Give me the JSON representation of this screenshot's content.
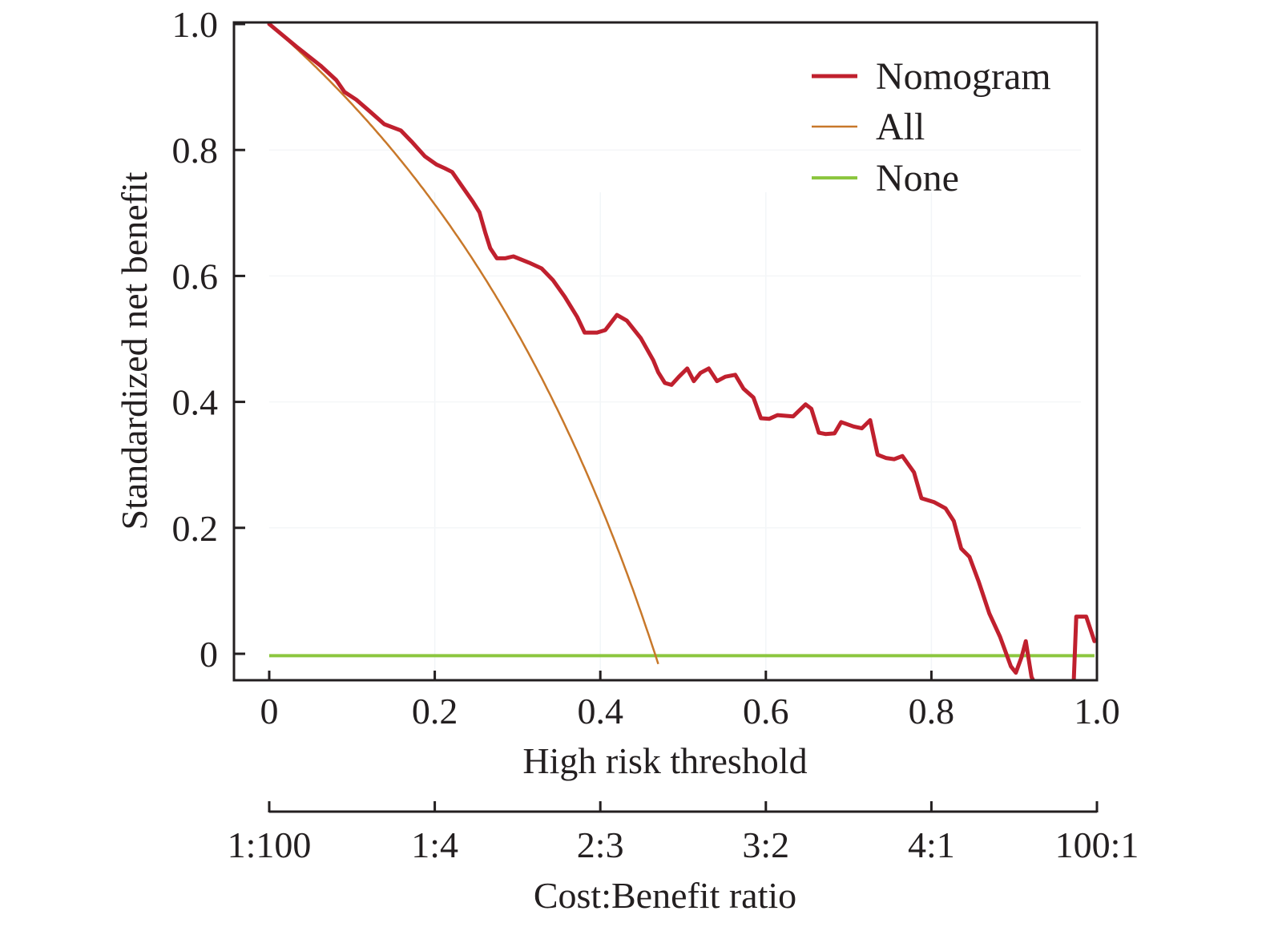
{
  "chart_data": {
    "type": "line",
    "title": "",
    "xlabel": "High risk threshold",
    "ylabel": "Standardized net benefit",
    "xlim": [
      0,
      1.0
    ],
    "ylim": [
      -0.042,
      1.0
    ],
    "grid": true,
    "x_ticks": [
      "0",
      "0.2",
      "0.4",
      "0.6",
      "0.8",
      "1.0"
    ],
    "x_tick_values": [
      0,
      0.2,
      0.4,
      0.6,
      0.8,
      1.0
    ],
    "y_ticks": [
      "0",
      "0.2",
      "0.4",
      "0.6",
      "0.8",
      "1.0"
    ],
    "y_tick_values": [
      0,
      0.2,
      0.4,
      0.6,
      0.8,
      1.0
    ],
    "secondary_x_axis": {
      "label": "Cost:Benefit ratio",
      "ticks": [
        "1:100",
        "1:4",
        "2:3",
        "3:2",
        "4:1",
        "100:1"
      ],
      "tick_values": [
        0,
        0.2,
        0.4,
        0.6,
        0.8,
        1.0
      ]
    },
    "legend": {
      "position": "top-right",
      "entries": [
        "Nomogram",
        "All",
        "None"
      ]
    },
    "series": [
      {
        "name": "Nomogram",
        "color": "#c0202e",
        "segments": [
          [
            [
              0.0,
              1.0
            ],
            [
              0.033,
              0.964
            ],
            [
              0.062,
              0.934
            ],
            [
              0.081,
              0.911
            ],
            [
              0.091,
              0.892
            ],
            [
              0.105,
              0.88
            ],
            [
              0.12,
              0.863
            ],
            [
              0.139,
              0.841
            ],
            [
              0.159,
              0.831
            ],
            [
              0.173,
              0.812
            ],
            [
              0.188,
              0.79
            ],
            [
              0.202,
              0.777
            ],
            [
              0.212,
              0.771
            ],
            [
              0.221,
              0.765
            ],
            [
              0.231,
              0.746
            ],
            [
              0.246,
              0.718
            ],
            [
              0.254,
              0.701
            ],
            [
              0.261,
              0.669
            ],
            [
              0.267,
              0.644
            ],
            [
              0.275,
              0.628
            ],
            [
              0.285,
              0.628
            ],
            [
              0.295,
              0.631
            ],
            [
              0.314,
              0.621
            ],
            [
              0.329,
              0.612
            ],
            [
              0.343,
              0.593
            ],
            [
              0.357,
              0.567
            ],
            [
              0.372,
              0.535
            ],
            [
              0.381,
              0.51
            ],
            [
              0.396,
              0.51
            ],
            [
              0.406,
              0.514
            ],
            [
              0.42,
              0.538
            ],
            [
              0.432,
              0.529
            ],
            [
              0.449,
              0.501
            ],
            [
              0.464,
              0.466
            ],
            [
              0.47,
              0.447
            ],
            [
              0.478,
              0.43
            ],
            [
              0.486,
              0.427
            ],
            [
              0.495,
              0.44
            ],
            [
              0.505,
              0.453
            ],
            [
              0.513,
              0.433
            ],
            [
              0.521,
              0.446
            ],
            [
              0.531,
              0.453
            ],
            [
              0.541,
              0.433
            ],
            [
              0.551,
              0.44
            ],
            [
              0.563,
              0.443
            ],
            [
              0.573,
              0.421
            ],
            [
              0.585,
              0.407
            ],
            [
              0.594,
              0.374
            ],
            [
              0.604,
              0.373
            ],
            [
              0.614,
              0.379
            ],
            [
              0.633,
              0.377
            ],
            [
              0.648,
              0.396
            ],
            [
              0.655,
              0.389
            ],
            [
              0.664,
              0.351
            ],
            [
              0.672,
              0.349
            ],
            [
              0.683,
              0.35
            ],
            [
              0.691,
              0.368
            ],
            [
              0.706,
              0.361
            ],
            [
              0.716,
              0.358
            ],
            [
              0.726,
              0.371
            ],
            [
              0.735,
              0.316
            ],
            [
              0.745,
              0.311
            ],
            [
              0.755,
              0.309
            ],
            [
              0.765,
              0.314
            ],
            [
              0.779,
              0.288
            ],
            [
              0.788,
              0.247
            ],
            [
              0.803,
              0.241
            ],
            [
              0.817,
              0.231
            ],
            [
              0.827,
              0.211
            ],
            [
              0.836,
              0.167
            ],
            [
              0.846,
              0.154
            ],
            [
              0.857,
              0.115
            ],
            [
              0.87,
              0.064
            ],
            [
              0.883,
              0.027
            ],
            [
              0.896,
              -0.02
            ],
            [
              0.902,
              -0.03
            ],
            [
              0.909,
              -0.005
            ],
            [
              0.914,
              0.02
            ],
            [
              0.921,
              -0.037
            ],
            [
              0.923,
              -0.042
            ]
          ],
          [
            [
              0.972,
              -0.042
            ],
            [
              0.975,
              0.059
            ],
            [
              0.987,
              0.059
            ],
            [
              0.997,
              0.02
            ]
          ]
        ]
      },
      {
        "name": "All",
        "color": "#c8782a",
        "prevalence": 0.466,
        "x_range": [
          0,
          0.47
        ]
      },
      {
        "name": "None",
        "color": "#8cc63f",
        "value": -0.003,
        "x_range": [
          0,
          0.997
        ]
      }
    ]
  }
}
